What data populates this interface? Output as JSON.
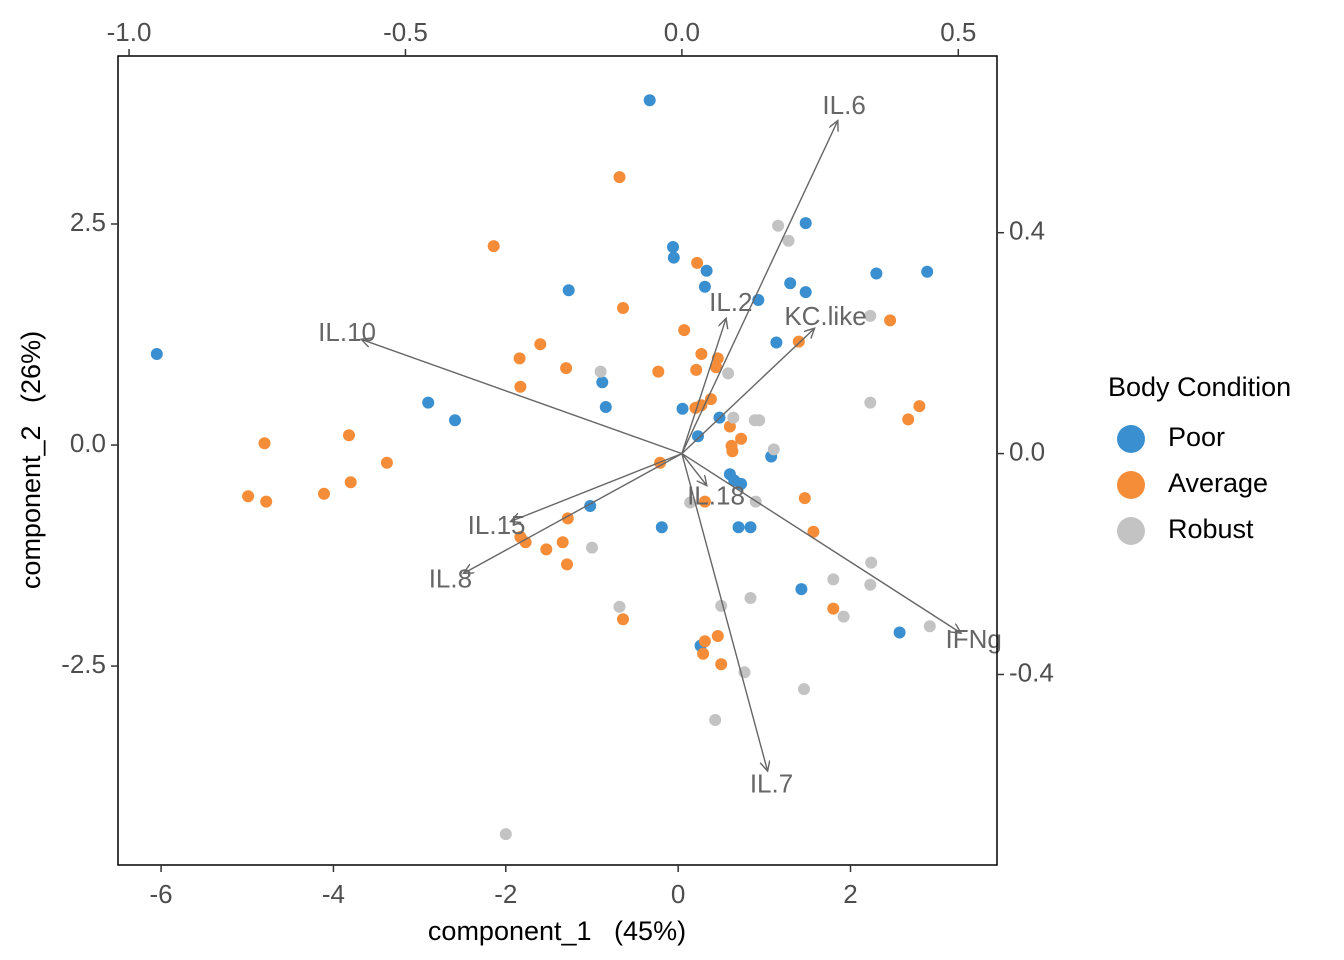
{
  "chart_data": {
    "type": "scatter",
    "subtype": "biplot",
    "xlabel": "component_1   (45%)",
    "ylabel": "component_2   (26%)",
    "xlim": [
      -6.5,
      3.7
    ],
    "ylim": [
      -4.75,
      4.4
    ],
    "xticks": [
      -6,
      -4,
      -2,
      0,
      2
    ],
    "xtick_labels": [
      "-6",
      "-4",
      "-2",
      "0",
      "2"
    ],
    "yticks": [
      -2.5,
      0,
      2.5
    ],
    "ytick_labels": [
      "-2.5",
      "0.0",
      "2.5"
    ],
    "top_axis": {
      "lim": [
        -1.02,
        0.57
      ],
      "ticks": [
        -1.0,
        -0.5,
        0.0,
        0.5
      ],
      "tick_labels": [
        "-1.0",
        "-0.5",
        "0.0",
        "0.5"
      ]
    },
    "right_axis": {
      "lim": [
        -0.745,
        0.72
      ],
      "ticks": [
        -0.4,
        0.0,
        0.4
      ],
      "tick_labels": [
        "-0.4",
        "0.0",
        "0.4"
      ]
    },
    "grid": false,
    "legend": {
      "title": "Body Condition",
      "placement": "right",
      "entries": [
        "Poor",
        "Average",
        "Robust"
      ]
    },
    "colors": {
      "Poor": "#3a8fd0",
      "Average": "#f48c38",
      "Robust": "#c3c3c3",
      "arrow": "#666666"
    },
    "series": [
      {
        "name": "Poor",
        "points": [
          [
            -6.05,
            1.03
          ],
          [
            -0.33,
            3.9
          ],
          [
            -2.9,
            0.48
          ],
          [
            -2.59,
            0.28
          ],
          [
            -1.27,
            1.75
          ],
          [
            -0.88,
            0.71
          ],
          [
            -0.84,
            0.43
          ],
          [
            -1.02,
            -0.69
          ],
          [
            -0.19,
            -0.93
          ],
          [
            -0.06,
            2.24
          ],
          [
            -0.05,
            2.12
          ],
          [
            0.33,
            1.97
          ],
          [
            0.31,
            1.79
          ],
          [
            0.05,
            0.41
          ],
          [
            0.23,
            0.1
          ],
          [
            0.48,
            0.31
          ],
          [
            0.6,
            -0.33
          ],
          [
            0.65,
            -0.4
          ],
          [
            0.73,
            -0.44
          ],
          [
            0.7,
            -0.93
          ],
          [
            0.84,
            -0.93
          ],
          [
            0.26,
            -2.27
          ],
          [
            0.93,
            1.64
          ],
          [
            1.14,
            1.16
          ],
          [
            1.08,
            -0.13
          ],
          [
            1.3,
            1.83
          ],
          [
            1.48,
            2.51
          ],
          [
            1.48,
            1.73
          ],
          [
            1.43,
            -1.63
          ],
          [
            2.3,
            1.94
          ],
          [
            2.89,
            1.96
          ],
          [
            2.57,
            -2.12
          ]
        ]
      },
      {
        "name": "Average",
        "points": [
          [
            -0.68,
            3.03
          ],
          [
            -2.14,
            2.25
          ],
          [
            -4.99,
            -0.58
          ],
          [
            -4.78,
            -0.64
          ],
          [
            -4.8,
            0.02
          ],
          [
            -4.11,
            -0.55
          ],
          [
            -3.8,
            -0.42
          ],
          [
            -3.82,
            0.11
          ],
          [
            -3.38,
            -0.2
          ],
          [
            -1.84,
            0.98
          ],
          [
            -1.83,
            0.66
          ],
          [
            -1.6,
            1.14
          ],
          [
            -1.3,
            0.87
          ],
          [
            -1.28,
            -0.83
          ],
          [
            -1.34,
            -1.1
          ],
          [
            -1.29,
            -1.35
          ],
          [
            -1.53,
            -1.18
          ],
          [
            -1.83,
            -1.04
          ],
          [
            -1.77,
            -1.1
          ],
          [
            -0.64,
            1.55
          ],
          [
            -0.64,
            -1.97
          ],
          [
            -0.23,
            0.83
          ],
          [
            -0.21,
            -0.2
          ],
          [
            0.07,
            1.3
          ],
          [
            0.22,
            2.06
          ],
          [
            0.21,
            0.85
          ],
          [
            0.27,
            1.03
          ],
          [
            0.27,
            0.45
          ],
          [
            0.38,
            0.52
          ],
          [
            0.46,
            0.98
          ],
          [
            0.44,
            0.88
          ],
          [
            0.2,
            0.42
          ],
          [
            0.6,
            0.21
          ],
          [
            0.63,
            -0.07
          ],
          [
            0.62,
            -0.01
          ],
          [
            0.73,
            0.07
          ],
          [
            0.31,
            -0.64
          ],
          [
            0.31,
            -2.22
          ],
          [
            0.29,
            -2.36
          ],
          [
            0.46,
            -2.16
          ],
          [
            0.5,
            -2.48
          ],
          [
            1.57,
            -0.98
          ],
          [
            1.47,
            -0.6
          ],
          [
            1.8,
            -1.85
          ],
          [
            1.4,
            1.17
          ],
          [
            2.46,
            1.41
          ],
          [
            2.67,
            0.29
          ],
          [
            2.8,
            0.44
          ]
        ]
      },
      {
        "name": "Robust",
        "points": [
          [
            -2.0,
            -4.4
          ],
          [
            -0.9,
            0.83
          ],
          [
            -1.0,
            -1.16
          ],
          [
            -0.68,
            -1.83
          ],
          [
            0.14,
            -0.65
          ],
          [
            0.58,
            0.81
          ],
          [
            0.64,
            0.31
          ],
          [
            0.89,
            0.28
          ],
          [
            0.94,
            0.28
          ],
          [
            1.11,
            -0.05
          ],
          [
            0.9,
            -0.64
          ],
          [
            0.84,
            -1.73
          ],
          [
            0.5,
            -1.82
          ],
          [
            0.77,
            -2.57
          ],
          [
            0.43,
            -3.11
          ],
          [
            1.16,
            2.48
          ],
          [
            1.28,
            2.31
          ],
          [
            1.8,
            -1.52
          ],
          [
            1.46,
            -2.76
          ],
          [
            1.92,
            -1.94
          ],
          [
            2.24,
            -1.33
          ],
          [
            2.23,
            -1.58
          ],
          [
            2.23,
            0.48
          ],
          [
            2.23,
            1.46
          ],
          [
            2.92,
            -2.05
          ]
        ]
      }
    ],
    "loadings": [
      {
        "name": "IL.6",
        "x": 0.282,
        "y": 0.603
      },
      {
        "name": "IL.2",
        "x": 0.08,
        "y": 0.245
      },
      {
        "name": "KC.like",
        "x": 0.24,
        "y": 0.227
      },
      {
        "name": "IL.10",
        "x": -0.58,
        "y": 0.207
      },
      {
        "name": "IL.15",
        "x": -0.31,
        "y": -0.123
      },
      {
        "name": "IL.8",
        "x": -0.395,
        "y": -0.217
      },
      {
        "name": "IL.18",
        "x": 0.045,
        "y": -0.058
      },
      {
        "name": "IFNg",
        "x": 0.505,
        "y": -0.325
      },
      {
        "name": "IL.7",
        "x": 0.155,
        "y": -0.575
      }
    ]
  }
}
